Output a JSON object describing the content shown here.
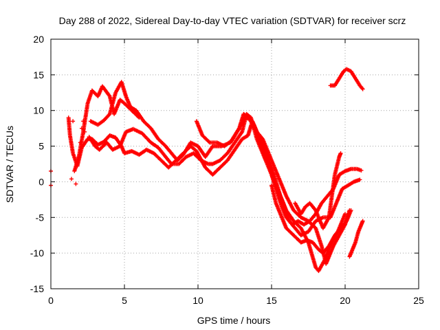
{
  "chart_data": {
    "type": "scatter",
    "title": "Day 288 of 2022, Sidereal Day-to-day VTEC variation (SDTVAR) for receiver scrz",
    "xlabel": "GPS time / hours",
    "ylabel": "SDTVAR / TECUs",
    "xlim": [
      0,
      25
    ],
    "ylim": [
      -15,
      20
    ],
    "xticks": [
      0,
      5,
      10,
      15,
      20,
      25
    ],
    "yticks": [
      -15,
      -10,
      -5,
      0,
      5,
      10,
      15,
      20
    ],
    "grid": true,
    "marker": "plus",
    "color": "#ff0000",
    "series": [
      {
        "name": "track-1",
        "points": [
          [
            1.6,
            1.5
          ],
          [
            1.9,
            3.5
          ],
          [
            2.2,
            7.0
          ],
          [
            2.5,
            11.0
          ],
          [
            2.8,
            12.8
          ],
          [
            3.2,
            12.0
          ],
          [
            3.5,
            13.4
          ],
          [
            4.0,
            12.0
          ],
          [
            4.3,
            9.5
          ],
          [
            4.7,
            11.5
          ],
          [
            5.0,
            11.0
          ],
          [
            5.5,
            10.0
          ],
          [
            6.0,
            9.0
          ]
        ]
      },
      {
        "name": "track-2",
        "points": [
          [
            1.2,
            9.0
          ],
          [
            1.3,
            6.5
          ],
          [
            1.5,
            4.0
          ],
          [
            1.8,
            2.2
          ],
          [
            2.1,
            4.8
          ],
          [
            2.5,
            6.0
          ],
          [
            2.8,
            6.0
          ],
          [
            3.2,
            5.2
          ],
          [
            3.6,
            5.6
          ],
          [
            4.0,
            6.5
          ],
          [
            4.4,
            6.2
          ],
          [
            4.8,
            5.0
          ],
          [
            5.0,
            4.0
          ],
          [
            5.5,
            4.3
          ],
          [
            6.0,
            3.8
          ],
          [
            6.5,
            4.5
          ],
          [
            7.0,
            4.0
          ],
          [
            7.5,
            3.0
          ],
          [
            8.0,
            2.0
          ],
          [
            8.5,
            3.0
          ],
          [
            9.0,
            4.0
          ],
          [
            9.5,
            5.0
          ],
          [
            9.9,
            4.3
          ],
          [
            10.5,
            2.0
          ],
          [
            11.0,
            1.0
          ],
          [
            11.5,
            2.0
          ],
          [
            12.0,
            3.0
          ],
          [
            12.5,
            4.5
          ],
          [
            13.0,
            6.0
          ],
          [
            13.4,
            6.5
          ],
          [
            13.7,
            8.5
          ],
          [
            14.0,
            7.0
          ],
          [
            14.5,
            4.5
          ],
          [
            15.0,
            2.0
          ],
          [
            15.3,
            0.0
          ],
          [
            15.6,
            -2.0
          ],
          [
            16.0,
            -4.0
          ],
          [
            16.5,
            -5.5
          ],
          [
            17.0,
            -6.5
          ],
          [
            17.5,
            -8.5
          ],
          [
            18.0,
            -12.0
          ],
          [
            18.2,
            -12.5
          ],
          [
            18.6,
            -11.0
          ],
          [
            19.0,
            -9.0
          ],
          [
            19.5,
            -7.0
          ],
          [
            20.0,
            -4.5
          ]
        ]
      },
      {
        "name": "track-3",
        "points": [
          [
            2.6,
            6.3
          ],
          [
            3.0,
            5.0
          ],
          [
            3.3,
            4.5
          ],
          [
            3.8,
            5.5
          ],
          [
            4.2,
            4.5
          ],
          [
            4.7,
            5.0
          ],
          [
            5.1,
            7.0
          ],
          [
            5.6,
            7.4
          ],
          [
            6.2,
            6.8
          ],
          [
            6.8,
            5.5
          ],
          [
            7.3,
            4.8
          ],
          [
            7.8,
            3.5
          ],
          [
            8.2,
            2.5
          ],
          [
            8.7,
            2.5
          ],
          [
            9.2,
            3.5
          ],
          [
            9.7,
            4.0
          ],
          [
            10.2,
            3.0
          ],
          [
            10.7,
            2.5
          ],
          [
            11.0,
            2.5
          ],
          [
            11.5,
            3.0
          ],
          [
            12.0,
            4.0
          ],
          [
            12.5,
            5.5
          ],
          [
            13.0,
            7.0
          ],
          [
            13.3,
            9.5
          ],
          [
            13.6,
            9.0
          ],
          [
            14.0,
            6.0
          ],
          [
            14.5,
            3.5
          ],
          [
            15.0,
            1.0
          ],
          [
            15.4,
            -1.0
          ],
          [
            15.8,
            -3.0
          ],
          [
            16.2,
            -5.5
          ],
          [
            16.6,
            -6.5
          ],
          [
            17.0,
            -7.5
          ],
          [
            17.5,
            -7.0
          ],
          [
            18.0,
            -5.5
          ],
          [
            18.5,
            -5.0
          ],
          [
            19.0,
            -5.0
          ],
          [
            19.4,
            -3.0
          ],
          [
            19.8,
            -1.0
          ],
          [
            20.2,
            -0.5
          ],
          [
            20.6,
            0.0
          ],
          [
            21.0,
            0.3
          ]
        ]
      },
      {
        "name": "track-4",
        "points": [
          [
            2.7,
            8.5
          ],
          [
            3.2,
            8.0
          ],
          [
            3.6,
            8.6
          ],
          [
            4.0,
            9.5
          ],
          [
            4.4,
            12.5
          ],
          [
            4.8,
            14.0
          ],
          [
            5.1,
            12.0
          ],
          [
            5.4,
            10.5
          ],
          [
            5.8,
            10.0
          ],
          [
            6.3,
            8.5
          ],
          [
            6.8,
            7.5
          ],
          [
            7.3,
            6.0
          ],
          [
            7.8,
            5.0
          ],
          [
            8.2,
            4.0
          ],
          [
            8.6,
            3.0
          ],
          [
            9.0,
            3.8
          ],
          [
            9.5,
            5.5
          ],
          [
            10.0,
            5.0
          ],
          [
            10.5,
            3.5
          ],
          [
            11.0,
            5.0
          ],
          [
            11.6,
            5.0
          ],
          [
            12.2,
            5.5
          ],
          [
            12.8,
            7.5
          ],
          [
            13.2,
            9.0
          ],
          [
            13.5,
            8.8
          ],
          [
            14.0,
            7.0
          ],
          [
            14.4,
            6.0
          ],
          [
            14.8,
            4.0
          ],
          [
            15.2,
            2.0
          ],
          [
            15.6,
            0.0
          ],
          [
            16.0,
            -2.0
          ],
          [
            16.5,
            -4.0
          ],
          [
            17.0,
            -5.0
          ],
          [
            17.5,
            -5.5
          ],
          [
            18.0,
            -6.5
          ],
          [
            18.4,
            -9.0
          ],
          [
            18.7,
            -11.5
          ],
          [
            18.9,
            -10.5
          ],
          [
            19.2,
            -9.0
          ],
          [
            19.6,
            -7.5
          ],
          [
            20.0,
            -6.0
          ],
          [
            20.3,
            -4.0
          ]
        ]
      },
      {
        "name": "track-5",
        "points": [
          [
            9.9,
            8.5
          ],
          [
            10.3,
            6.5
          ],
          [
            10.8,
            5.5
          ],
          [
            11.3,
            5.5
          ],
          [
            11.8,
            5.0
          ],
          [
            12.3,
            5.8
          ],
          [
            12.8,
            7.5
          ],
          [
            13.1,
            9.5
          ],
          [
            13.5,
            9.0
          ],
          [
            13.8,
            8.0
          ],
          [
            14.2,
            6.0
          ],
          [
            14.7,
            3.5
          ],
          [
            15.0,
            1.0
          ],
          [
            15.3,
            -1.0
          ],
          [
            15.7,
            -3.5
          ],
          [
            16.0,
            -5.0
          ],
          [
            16.4,
            -6.0
          ],
          [
            16.8,
            -5.5
          ],
          [
            17.2,
            -6.0
          ],
          [
            17.6,
            -5.5
          ],
          [
            18.0,
            -4.5
          ],
          [
            18.4,
            -3.0
          ],
          [
            18.8,
            -2.0
          ],
          [
            19.2,
            -1.0
          ],
          [
            19.6,
            1.0
          ],
          [
            20.0,
            1.5
          ],
          [
            20.4,
            1.8
          ],
          [
            20.8,
            1.8
          ],
          [
            21.1,
            1.6
          ]
        ]
      },
      {
        "name": "track-6",
        "points": [
          [
            16.6,
            -3.0
          ],
          [
            17.0,
            -4.5
          ],
          [
            17.3,
            -3.5
          ],
          [
            17.6,
            -3.0
          ],
          [
            18.0,
            -4.0
          ],
          [
            18.5,
            -6.5
          ],
          [
            18.9,
            -5.0
          ],
          [
            19.1,
            -2.0
          ],
          [
            19.3,
            1.0
          ],
          [
            19.6,
            3.5
          ],
          [
            19.7,
            4.0
          ]
        ]
      },
      {
        "name": "track-7",
        "points": [
          [
            15.0,
            -0.5
          ],
          [
            15.3,
            -3.0
          ],
          [
            15.7,
            -5.0
          ],
          [
            16.0,
            -6.5
          ],
          [
            16.5,
            -7.5
          ],
          [
            17.0,
            -8.5
          ],
          [
            17.4,
            -8.2
          ],
          [
            17.8,
            -8.5
          ],
          [
            18.2,
            -9.5
          ],
          [
            18.5,
            -10.0
          ],
          [
            18.9,
            -9.0
          ],
          [
            19.3,
            -7.5
          ],
          [
            19.7,
            -6.5
          ],
          [
            20.1,
            -5.5
          ],
          [
            20.4,
            -4.0
          ]
        ]
      },
      {
        "name": "track-8",
        "points": [
          [
            19.0,
            13.5
          ],
          [
            19.3,
            13.5
          ],
          [
            19.6,
            14.5
          ],
          [
            19.9,
            15.5
          ],
          [
            20.1,
            15.8
          ],
          [
            20.4,
            15.5
          ],
          [
            20.7,
            14.5
          ],
          [
            21.0,
            13.5
          ],
          [
            21.2,
            13.0
          ]
        ]
      },
      {
        "name": "track-9",
        "points": [
          [
            20.3,
            -10.5
          ],
          [
            20.5,
            -9.5
          ],
          [
            20.7,
            -8.5
          ],
          [
            20.9,
            -7.0
          ],
          [
            21.1,
            -6.0
          ],
          [
            21.2,
            -5.5
          ]
        ]
      }
    ],
    "scattered_points": [
      [
        0.0,
        1.5
      ],
      [
        0.0,
        -0.5
      ],
      [
        1.5,
        8.5
      ],
      [
        1.9,
        3.5
      ],
      [
        2.0,
        5.5
      ],
      [
        2.1,
        7.5
      ],
      [
        2.2,
        8.5
      ],
      [
        2.3,
        7.0
      ],
      [
        1.7,
        -0.3
      ],
      [
        1.4,
        0.4
      ]
    ]
  }
}
